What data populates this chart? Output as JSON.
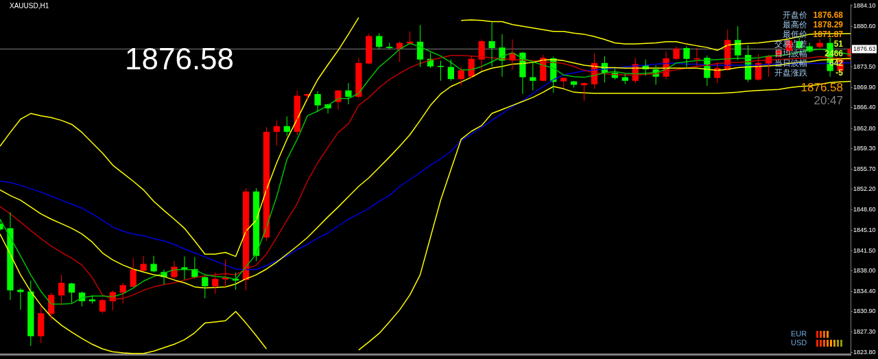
{
  "chart_data": {
    "type": "candlestick",
    "title": "XAUUSD,H1",
    "categories": [
      null,
      null,
      null,
      null,
      null,
      null,
      null,
      null,
      null,
      null,
      null,
      null,
      null,
      null,
      null,
      null,
      null,
      null,
      null,
      null,
      null,
      null,
      null,
      null,
      null,
      null,
      null,
      null,
      null,
      null,
      null,
      null,
      null,
      null,
      null,
      null,
      null,
      null,
      null,
      null,
      null,
      null,
      null,
      null,
      null,
      null,
      null,
      null,
      null,
      null,
      null,
      null,
      null,
      null,
      null,
      null,
      null,
      null,
      null,
      null,
      null,
      null,
      null,
      null,
      null,
      null,
      null,
      null,
      null,
      null,
      null,
      null,
      null,
      null,
      null,
      null,
      null,
      null,
      null,
      null,
      null,
      null,
      null,
      null
    ],
    "ohlc": [
      [
        1846.2,
        1846.8,
        1845.0,
        1845.2
      ],
      [
        1845.4,
        1848.2,
        1832.9,
        1834.6
      ],
      [
        1834.7,
        1835.0,
        1831.2,
        1834.3
      ],
      [
        1834.4,
        1836.3,
        1824.9,
        1826.6
      ],
      [
        1826.6,
        1831.9,
        1825.4,
        1830.6
      ],
      [
        1830.5,
        1834.2,
        1829.4,
        1833.8
      ],
      [
        1833.7,
        1837.3,
        1832.0,
        1835.9
      ],
      [
        1835.8,
        1835.9,
        1832.4,
        1834.2
      ],
      [
        1834.2,
        1834.4,
        1831.8,
        1832.7
      ],
      [
        1833.0,
        1833.7,
        1832.3,
        1832.7
      ],
      [
        1830.9,
        1833.1,
        1830.6,
        1832.9
      ],
      [
        1832.7,
        1834.6,
        1831.1,
        1834.3
      ],
      [
        1834.2,
        1835.9,
        1832.3,
        1835.5
      ],
      [
        1835.2,
        1840.2,
        1835.2,
        1838.2
      ],
      [
        1838.0,
        1840.6,
        1838.0,
        1839.2
      ],
      [
        1839.2,
        1840.6,
        1837.7,
        1837.9
      ],
      [
        1837.8,
        1838.2,
        1835.6,
        1836.9
      ],
      [
        1836.9,
        1839.7,
        1836.6,
        1838.7
      ],
      [
        1838.6,
        1840.5,
        1836.5,
        1838.2
      ],
      [
        1838.3,
        1840.4,
        1836.8,
        1836.9
      ],
      [
        1836.9,
        1837.0,
        1833.2,
        1835.3
      ],
      [
        1835.3,
        1837.7,
        1834.0,
        1836.6
      ],
      [
        1836.5,
        1840.0,
        1835.2,
        1836.8
      ],
      [
        1836.6,
        1837.7,
        1834.7,
        1836.3
      ],
      [
        1836.4,
        1852.4,
        1834.6,
        1851.8
      ],
      [
        1851.8,
        1852.4,
        1839.7,
        1840.6
      ],
      [
        1843.8,
        1863.0,
        1843.2,
        1862.2
      ],
      [
        1862.2,
        1864.2,
        1859.8,
        1863.2
      ],
      [
        1863.2,
        1864.9,
        1861.5,
        1862.2
      ],
      [
        1862.2,
        1869.4,
        1861.6,
        1868.5
      ],
      [
        1868.5,
        1868.9,
        1867.7,
        1868.8
      ],
      [
        1868.8,
        1869.3,
        1865.7,
        1866.8
      ],
      [
        1867.0,
        1867.1,
        1865.4,
        1866.3
      ],
      [
        1867.4,
        1869.5,
        1866.1,
        1869.4
      ],
      [
        1869.4,
        1870.7,
        1867.0,
        1868.3
      ],
      [
        1868.3,
        1875.1,
        1868.0,
        1874.2
      ],
      [
        1874.1,
        1879.3,
        1874.0,
        1878.9
      ],
      [
        1878.9,
        1879.4,
        1876.6,
        1877.0
      ],
      [
        1877.0,
        1877.7,
        1876.6,
        1876.8
      ],
      [
        1876.7,
        1878.0,
        1874.4,
        1877.7
      ],
      [
        1877.6,
        1879.7,
        1877.4,
        1877.9
      ],
      [
        1877.9,
        1880.8,
        1873.5,
        1874.8
      ],
      [
        1874.9,
        1876.0,
        1873.3,
        1873.6
      ],
      [
        1873.7,
        1874.6,
        1871.1,
        1873.5
      ],
      [
        1873.5,
        1874.8,
        1871.1,
        1871.4
      ],
      [
        1871.4,
        1873.5,
        1870.3,
        1872.9
      ],
      [
        1871.8,
        1875.5,
        1871.6,
        1874.9
      ],
      [
        1874.8,
        1878.3,
        1872.9,
        1878.0
      ],
      [
        1878.0,
        1881.3,
        1873.6,
        1876.8
      ],
      [
        1876.9,
        1879.2,
        1871.8,
        1874.6
      ],
      [
        1874.6,
        1878.3,
        1873.0,
        1875.9
      ],
      [
        1876.0,
        1876.1,
        1868.8,
        1871.7
      ],
      [
        1871.7,
        1874.4,
        1869.4,
        1871.1
      ],
      [
        1871.1,
        1875.6,
        1871.0,
        1875.1
      ],
      [
        1875.0,
        1875.3,
        1869.0,
        1870.9
      ],
      [
        1871.0,
        1871.7,
        1869.9,
        1871.6
      ],
      [
        1871.0,
        1871.1,
        1869.9,
        1870.4
      ],
      [
        1870.3,
        1870.8,
        1867.6,
        1870.7
      ],
      [
        1870.5,
        1875.9,
        1869.7,
        1874.2
      ],
      [
        1874.2,
        1875.4,
        1870.8,
        1872.5
      ],
      [
        1872.5,
        1873.3,
        1871.3,
        1871.6
      ],
      [
        1871.7,
        1872.3,
        1870.5,
        1871.1
      ],
      [
        1871.1,
        1875.1,
        1870.7,
        1874.0
      ],
      [
        1873.8,
        1874.8,
        1872.0,
        1873.1
      ],
      [
        1873.1,
        1873.8,
        1870.4,
        1871.8
      ],
      [
        1871.8,
        1876.2,
        1871.4,
        1875.0
      ],
      [
        1874.9,
        1877.1,
        1874.7,
        1876.7
      ],
      [
        1876.8,
        1877.1,
        1873.5,
        1874.9
      ],
      [
        1874.9,
        1876.8,
        1873.6,
        1875.0
      ],
      [
        1875.1,
        1875.5,
        1870.2,
        1871.6
      ],
      [
        1871.6,
        1874.3,
        1870.7,
        1873.3
      ],
      [
        1873.0,
        1880.0,
        1872.8,
        1878.2
      ],
      [
        1878.2,
        1880.6,
        1874.7,
        1875.5
      ],
      [
        1875.6,
        1877.3,
        1870.9,
        1871.3
      ],
      [
        1871.3,
        1875.7,
        1871.1,
        1874.2
      ],
      [
        1874.1,
        1875.6,
        1871.8,
        1875.4
      ],
      [
        1875.3,
        1877.3,
        1875.1,
        1876.4
      ],
      [
        1876.3,
        1878.2,
        1875.6,
        1878.1
      ],
      [
        1878.0,
        1878.6,
        1876.7,
        1876.8
      ],
      [
        1877.1,
        1877.7,
        1876.0,
        1876.2
      ],
      [
        1877.0,
        1878.3,
        1876.7,
        1877.7
      ],
      [
        1877.7,
        1878.6,
        1871.8,
        1872.8
      ],
      [
        1872.8,
        1875.1,
        1872.0,
        1874.8
      ],
      [
        1875.3,
        1877.0,
        1875.0,
        1876.7
      ]
    ],
    "colors": [
      "#00ff00",
      "#00ff00",
      "#00ff00",
      "#00ff00",
      "#ff0000",
      "#ff0000",
      "#ff0000",
      "#00ff00",
      "#00ff00",
      "#00ff00",
      "#ff0000",
      "#ff0000",
      "#ff0000",
      "#ff0000",
      "#ff0000",
      "#00ff00",
      "#00ff00",
      "#ff0000",
      "#00ff00",
      "#00ff00",
      "#00ff00",
      "#ff0000",
      "#ff0000",
      "#00ff00",
      "#ff0000",
      "#00ff00",
      "#ff0000",
      "#ff0000",
      "#00ff00",
      "#ff0000",
      "#ff0000",
      "#00ff00",
      "#00ff00",
      "#ff0000",
      "#00ff00",
      "#ff0000",
      "#ff0000",
      "#00ff00",
      "#00ff00",
      "#ff0000",
      "#ff0000",
      "#00ff00",
      "#00ff00",
      "#00ff00",
      "#00ff00",
      "#ff0000",
      "#ff0000",
      "#ff0000",
      "#00ff00",
      "#00ff00",
      "#ff0000",
      "#00ff00",
      "#00ff00",
      "#ff0000",
      "#00ff00",
      "#ff0000",
      "#00ff00",
      "#ff0000",
      "#ff0000",
      "#00ff00",
      "#00ff00",
      "#00ff00",
      "#ff0000",
      "#00ff00",
      "#00ff00",
      "#ff0000",
      "#ff0000",
      "#00ff00",
      "#ff0000",
      "#00ff00",
      "#ff0000",
      "#ff0000",
      "#00ff00",
      "#00ff00",
      "#ff0000",
      "#ff0000",
      "#ff0000",
      "#ff0000",
      "#00ff00",
      "#00ff00",
      "#ff0000",
      "#00ff00",
      "#ff0000",
      "#ff0000"
    ],
    "series": [
      {
        "type": "line",
        "color": "#ffff00",
        "values": [
          1859.7,
          1862.1,
          1864.4,
          1865.4,
          1865.0,
          1864.7,
          1864.2,
          1863.5,
          1862.1,
          1860.3,
          1858.5,
          1856.4,
          1855.0,
          1853.6,
          1852.1,
          1850.1,
          1848.5,
          1847.0,
          1845.4,
          1843.2,
          1840.9,
          1840.9,
          1841.2,
          1840.5,
          1844.9,
          1846.8,
          1852.1,
          1856.8,
          1860.9,
          1864.4,
          1868.0,
          1871.3,
          1873.9,
          1876.4,
          1879.2,
          1882.1,
          null,
          null,
          null,
          null,
          null,
          null,
          null,
          null,
          null,
          1881.6,
          1881.7,
          1881.6,
          1881.4,
          1881.4,
          1880.9,
          1880.6,
          1880.3,
          1880.0,
          1879.7,
          1879.7,
          1879.4,
          1879.2,
          1878.8,
          1878.3,
          1877.7,
          1877.5,
          1877.5,
          1877.6,
          1877.7,
          1877.9,
          1877.9,
          1877.5,
          1877.2,
          1876.9,
          1876.4,
          1877.3,
          1877.5,
          1877.6,
          1877.7,
          1877.9,
          1878.1,
          1878.4,
          1878.8,
          1879.2,
          1879.3,
          1879.3,
          1879.3,
          1879.3
        ]
      },
      {
        "type": "line",
        "color": "#ffff00",
        "values": [
          1852.1,
          1851.1,
          1850.3,
          1849.1,
          1847.9,
          1847.0,
          1846.2,
          1845.4,
          1844.4,
          1843.0,
          1841.1,
          1839.9,
          1839.0,
          1838.3,
          1837.8,
          1837.3,
          1837.0,
          1836.4,
          1835.9,
          1835.2,
          1835.0,
          1835.1,
          1835.2,
          1835.7,
          1836.6,
          1837.3,
          1838.3,
          1839.5,
          1840.9,
          1842.3,
          1843.8,
          1845.6,
          1847.4,
          1849.1,
          1850.9,
          1852.7,
          1854.2,
          1856.0,
          1857.8,
          1859.7,
          1861.7,
          1864.2,
          1866.8,
          1868.8,
          1870.1,
          1870.9,
          1871.7,
          1872.7,
          1873.3,
          1873.6,
          1874.0,
          1874.1,
          1874.3,
          1874.7,
          1874.8,
          1874.6,
          1874.2,
          1873.8,
          1873.6,
          1873.4,
          1873.4,
          1873.3,
          1873.3,
          1873.3,
          1873.3,
          1873.3,
          1873.3,
          1873.3,
          1873.3,
          1873.1,
          1872.9,
          1873.1,
          1873.4,
          1873.5,
          1873.6,
          1873.7,
          1873.8,
          1874.1,
          1874.3,
          1874.4,
          1874.7,
          1874.8,
          1874.9,
          1875.0
        ]
      },
      {
        "type": "line",
        "color": "#ffff00",
        "values": [
          1844.4,
          1840.9,
          1837.3,
          1834.4,
          1832.0,
          1830.0,
          1828.5,
          1827.3,
          1826.2,
          1825.2,
          1824.4,
          1823.9,
          1823.7,
          1823.6,
          1823.6,
          1824.0,
          1824.6,
          1825.2,
          1826.0,
          1827.2,
          1828.9,
          1829.1,
          1829.3,
          1830.9,
          1828.9,
          1826.7,
          1824.4,
          null,
          null,
          null,
          null,
          null,
          null,
          null,
          null,
          1824.2,
          1825.6,
          1827.1,
          1829.1,
          1831.2,
          1833.8,
          1837.3,
          1843.8,
          1850.3,
          1855.6,
          1860.9,
          1862.3,
          1863.3,
          1865.4,
          1866.1,
          1866.8,
          1867.5,
          1868.2,
          1869.1,
          1870.1,
          1869.7,
          1869.1,
          1869.0,
          1868.9,
          1868.9,
          1868.9,
          1868.9,
          1868.9,
          1868.9,
          1868.9,
          1868.9,
          1868.9,
          1868.9,
          1868.9,
          1868.9,
          1868.9,
          1869.0,
          1869.1,
          1869.3,
          1869.4,
          1869.5,
          1869.6,
          1869.9,
          1870.1,
          1870.2,
          1870.5,
          1870.8,
          1870.9,
          1871.0
        ]
      },
      {
        "type": "line",
        "color": "#00c000",
        "values": [
          1847.0,
          1843.8,
          1840.6,
          1837.3,
          1834.4,
          1832.2,
          1832.2,
          1832.3,
          1833.3,
          1833.6,
          1833.6,
          1833.5,
          1834.0,
          1835.0,
          1836.2,
          1837.0,
          1837.6,
          1838.2,
          1838.2,
          1838.2,
          1837.3,
          1837.0,
          1836.9,
          1836.5,
          1838.7,
          1840.9,
          1845.6,
          1850.9,
          1857.4,
          1860.9,
          1865.0,
          1865.8,
          1866.8,
          1868.0,
          1868.0,
          1868.9,
          1871.3,
          1873.5,
          1875.0,
          1876.6,
          1877.6,
          1877.0,
          1876.2,
          1875.4,
          1874.3,
          1873.0,
          1873.0,
          1873.6,
          1874.4,
          1875.3,
          1876.0,
          1875.0,
          1874.4,
          1873.8,
          1873.3,
          1872.1,
          1871.8,
          1871.7,
          1872.0,
          1872.5,
          1872.7,
          1872.4,
          1872.3,
          1872.4,
          1872.5,
          1873.1,
          1874.2,
          1874.4,
          1874.6,
          1874.7,
          1874.8,
          1874.9,
          1875.0,
          1875.0,
          1875.1,
          1875.4,
          1875.5,
          1875.7,
          1876.1,
          1876.4,
          1876.6,
          1876.4,
          1876.0,
          1875.7
        ]
      },
      {
        "type": "line",
        "color": "#c00000",
        "values": [
          1849.2,
          1847.9,
          1846.5,
          1845.0,
          1843.6,
          1842.3,
          1841.2,
          1840.2,
          1839.0,
          1836.8,
          1833.8,
          1833.0,
          1833.2,
          1833.8,
          1834.6,
          1835.2,
          1835.6,
          1835.9,
          1836.4,
          1836.8,
          1837.1,
          1837.3,
          1837.5,
          1837.3,
          1838.3,
          1839.0,
          1840.9,
          1843.8,
          1846.8,
          1849.7,
          1853.6,
          1856.8,
          1859.5,
          1862.1,
          1863.6,
          1866.8,
          1868.2,
          1869.9,
          1871.3,
          1872.4,
          1873.4,
          1874.1,
          1874.7,
          1875.1,
          1875.5,
          1875.5,
          1875.4,
          1875.3,
          1875.1,
          1874.9,
          1874.8,
          1874.7,
          1874.6,
          1874.4,
          1874.3,
          1874.1,
          1873.6,
          1872.9,
          1872.5,
          1872.3,
          1872.2,
          1872.1,
          1872.1,
          1872.2,
          1872.3,
          1872.7,
          1873.0,
          1873.3,
          1873.6,
          1873.8,
          1874.1,
          1874.2,
          1874.3,
          1874.4,
          1874.6,
          1874.7,
          1874.8,
          1874.9,
          1875.0,
          1875.1,
          1875.3,
          1875.1,
          1875.0,
          1874.8
        ]
      },
      {
        "type": "line",
        "color": "#0000e0",
        "values": [
          1853.6,
          1853.4,
          1852.9,
          1852.3,
          1851.7,
          1851.0,
          1850.3,
          1849.6,
          1848.9,
          1847.9,
          1846.8,
          1845.6,
          1844.9,
          1844.4,
          1844.1,
          1843.6,
          1843.2,
          1842.6,
          1841.8,
          1841.1,
          1840.4,
          1839.7,
          1839.0,
          1838.3,
          1838.2,
          1838.2,
          1838.9,
          1839.7,
          1840.6,
          1841.7,
          1842.6,
          1843.7,
          1844.6,
          1845.8,
          1847.0,
          1847.9,
          1848.9,
          1850.1,
          1851.1,
          1852.7,
          1853.9,
          1855.1,
          1856.4,
          1857.5,
          1858.8,
          1860.7,
          1861.8,
          1863.0,
          1864.2,
          1865.4,
          1866.6,
          1867.6,
          1868.9,
          1870.1,
          1871.3,
          1872.1,
          1872.5,
          1872.8,
          1873.0,
          1873.1,
          1873.3,
          1873.5,
          1873.7,
          1873.8,
          1874.0,
          1874.1,
          1874.2,
          1874.0,
          1874.0,
          1873.8,
          1873.8,
          1873.8,
          1873.8,
          1873.8,
          1873.8,
          1874.0,
          1874.0,
          1874.0,
          1874.1,
          1874.1,
          1874.1,
          1874.1,
          1874.2,
          1874.2
        ]
      }
    ],
    "ylim": [
      1823.4,
      1884.4
    ],
    "yticks": [
      {
        "value": 1884.1,
        "label": "1884.10"
      },
      {
        "value": 1880.6,
        "label": "1880.60"
      },
      {
        "value": 1873.5,
        "label": "1873.50"
      },
      {
        "value": 1869.9,
        "label": "1869.90"
      },
      {
        "value": 1866.4,
        "label": "1866.40"
      },
      {
        "value": 1862.8,
        "label": "1862.80"
      },
      {
        "value": 1859.3,
        "label": "1859.30"
      },
      {
        "value": 1855.7,
        "label": "1855.70"
      },
      {
        "value": 1852.2,
        "label": "1852.20"
      },
      {
        "value": 1848.6,
        "label": "1848.60"
      },
      {
        "value": 1845.1,
        "label": "1845.10"
      },
      {
        "value": 1841.5,
        "label": "1841.50"
      },
      {
        "value": 1838.0,
        "label": "1838.00"
      },
      {
        "value": 1834.4,
        "label": "1834.40"
      },
      {
        "value": 1830.9,
        "label": "1830.90"
      },
      {
        "value": 1827.3,
        "label": "1827.30"
      },
      {
        "value": 1823.8,
        "label": "1823.80"
      }
    ],
    "ref_lines": [
      {
        "axis": "y",
        "value": 1876.63,
        "label": "1876.63",
        "color": "#808080"
      }
    ],
    "annotations": [
      "1876.58",
      "开盘价",
      "最高价",
      "最低价",
      "交易点差",
      "日均波幅",
      "当日波幅",
      "开盘涨跌",
      "1876.68",
      "1878.29",
      "1871.87",
      "51",
      "2466",
      "642",
      "-5",
      "1876.58",
      "20:47",
      "EUR",
      "USD"
    ],
    "tick_labels": "y",
    "legend": false,
    "grid": false,
    "marker": "none",
    "line_style": "solid"
  }
}
